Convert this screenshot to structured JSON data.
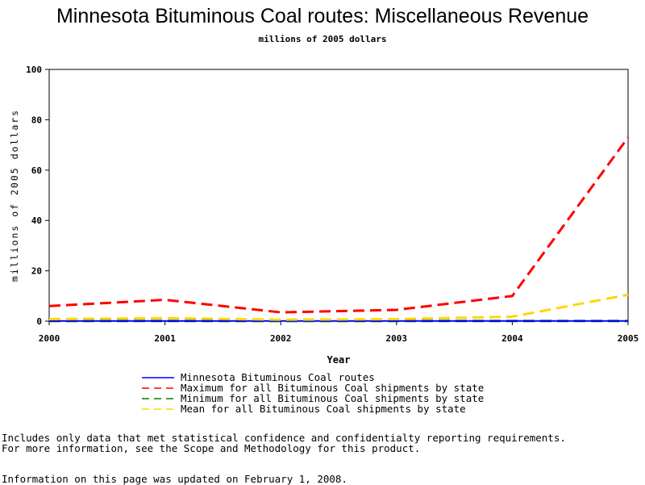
{
  "chart_data": {
    "type": "line",
    "title": "Minnesota Bituminous Coal routes: Miscellaneous Revenue",
    "subtitle": "millions of 2005 dollars",
    "xlabel": "Year",
    "ylabel": "millions of 2005 dollars",
    "x": [
      2000,
      2001,
      2002,
      2003,
      2004,
      2005
    ],
    "xlim": [
      2000,
      2005
    ],
    "ylim": [
      0,
      100
    ],
    "yticks": [
      0,
      20,
      40,
      60,
      80,
      100
    ],
    "grid": false,
    "legend_position": "bottom",
    "series": [
      {
        "name": "Minnesota Bituminous Coal routes",
        "values": [
          0.1,
          0.1,
          0.1,
          0.1,
          0.1,
          0.1
        ],
        "color": "#0000ff",
        "dash": "solid"
      },
      {
        "name": "Maximum for all Bituminous Coal shipments by state",
        "values": [
          6,
          8.5,
          3.5,
          4.5,
          10,
          73
        ],
        "color": "#ff0000",
        "dash": "dashed"
      },
      {
        "name": "Minimum for all Bituminous Coal shipments by state",
        "values": [
          0.1,
          0.1,
          0.1,
          0.1,
          0.1,
          0.1
        ],
        "color": "#008000",
        "dash": "dashed"
      },
      {
        "name": "Mean for all Bituminous Coal shipments by state",
        "values": [
          0.8,
          1.2,
          0.6,
          0.8,
          1.8,
          10.5
        ],
        "color": "#ffd700",
        "dash": "dashed"
      }
    ]
  },
  "notes": [
    "Includes only data that met statistical confidence and confidentialty reporting requirements.",
    "For more information, see the Scope and Methodology for this product."
  ],
  "updated": "Information on this page was updated on February 1, 2008."
}
